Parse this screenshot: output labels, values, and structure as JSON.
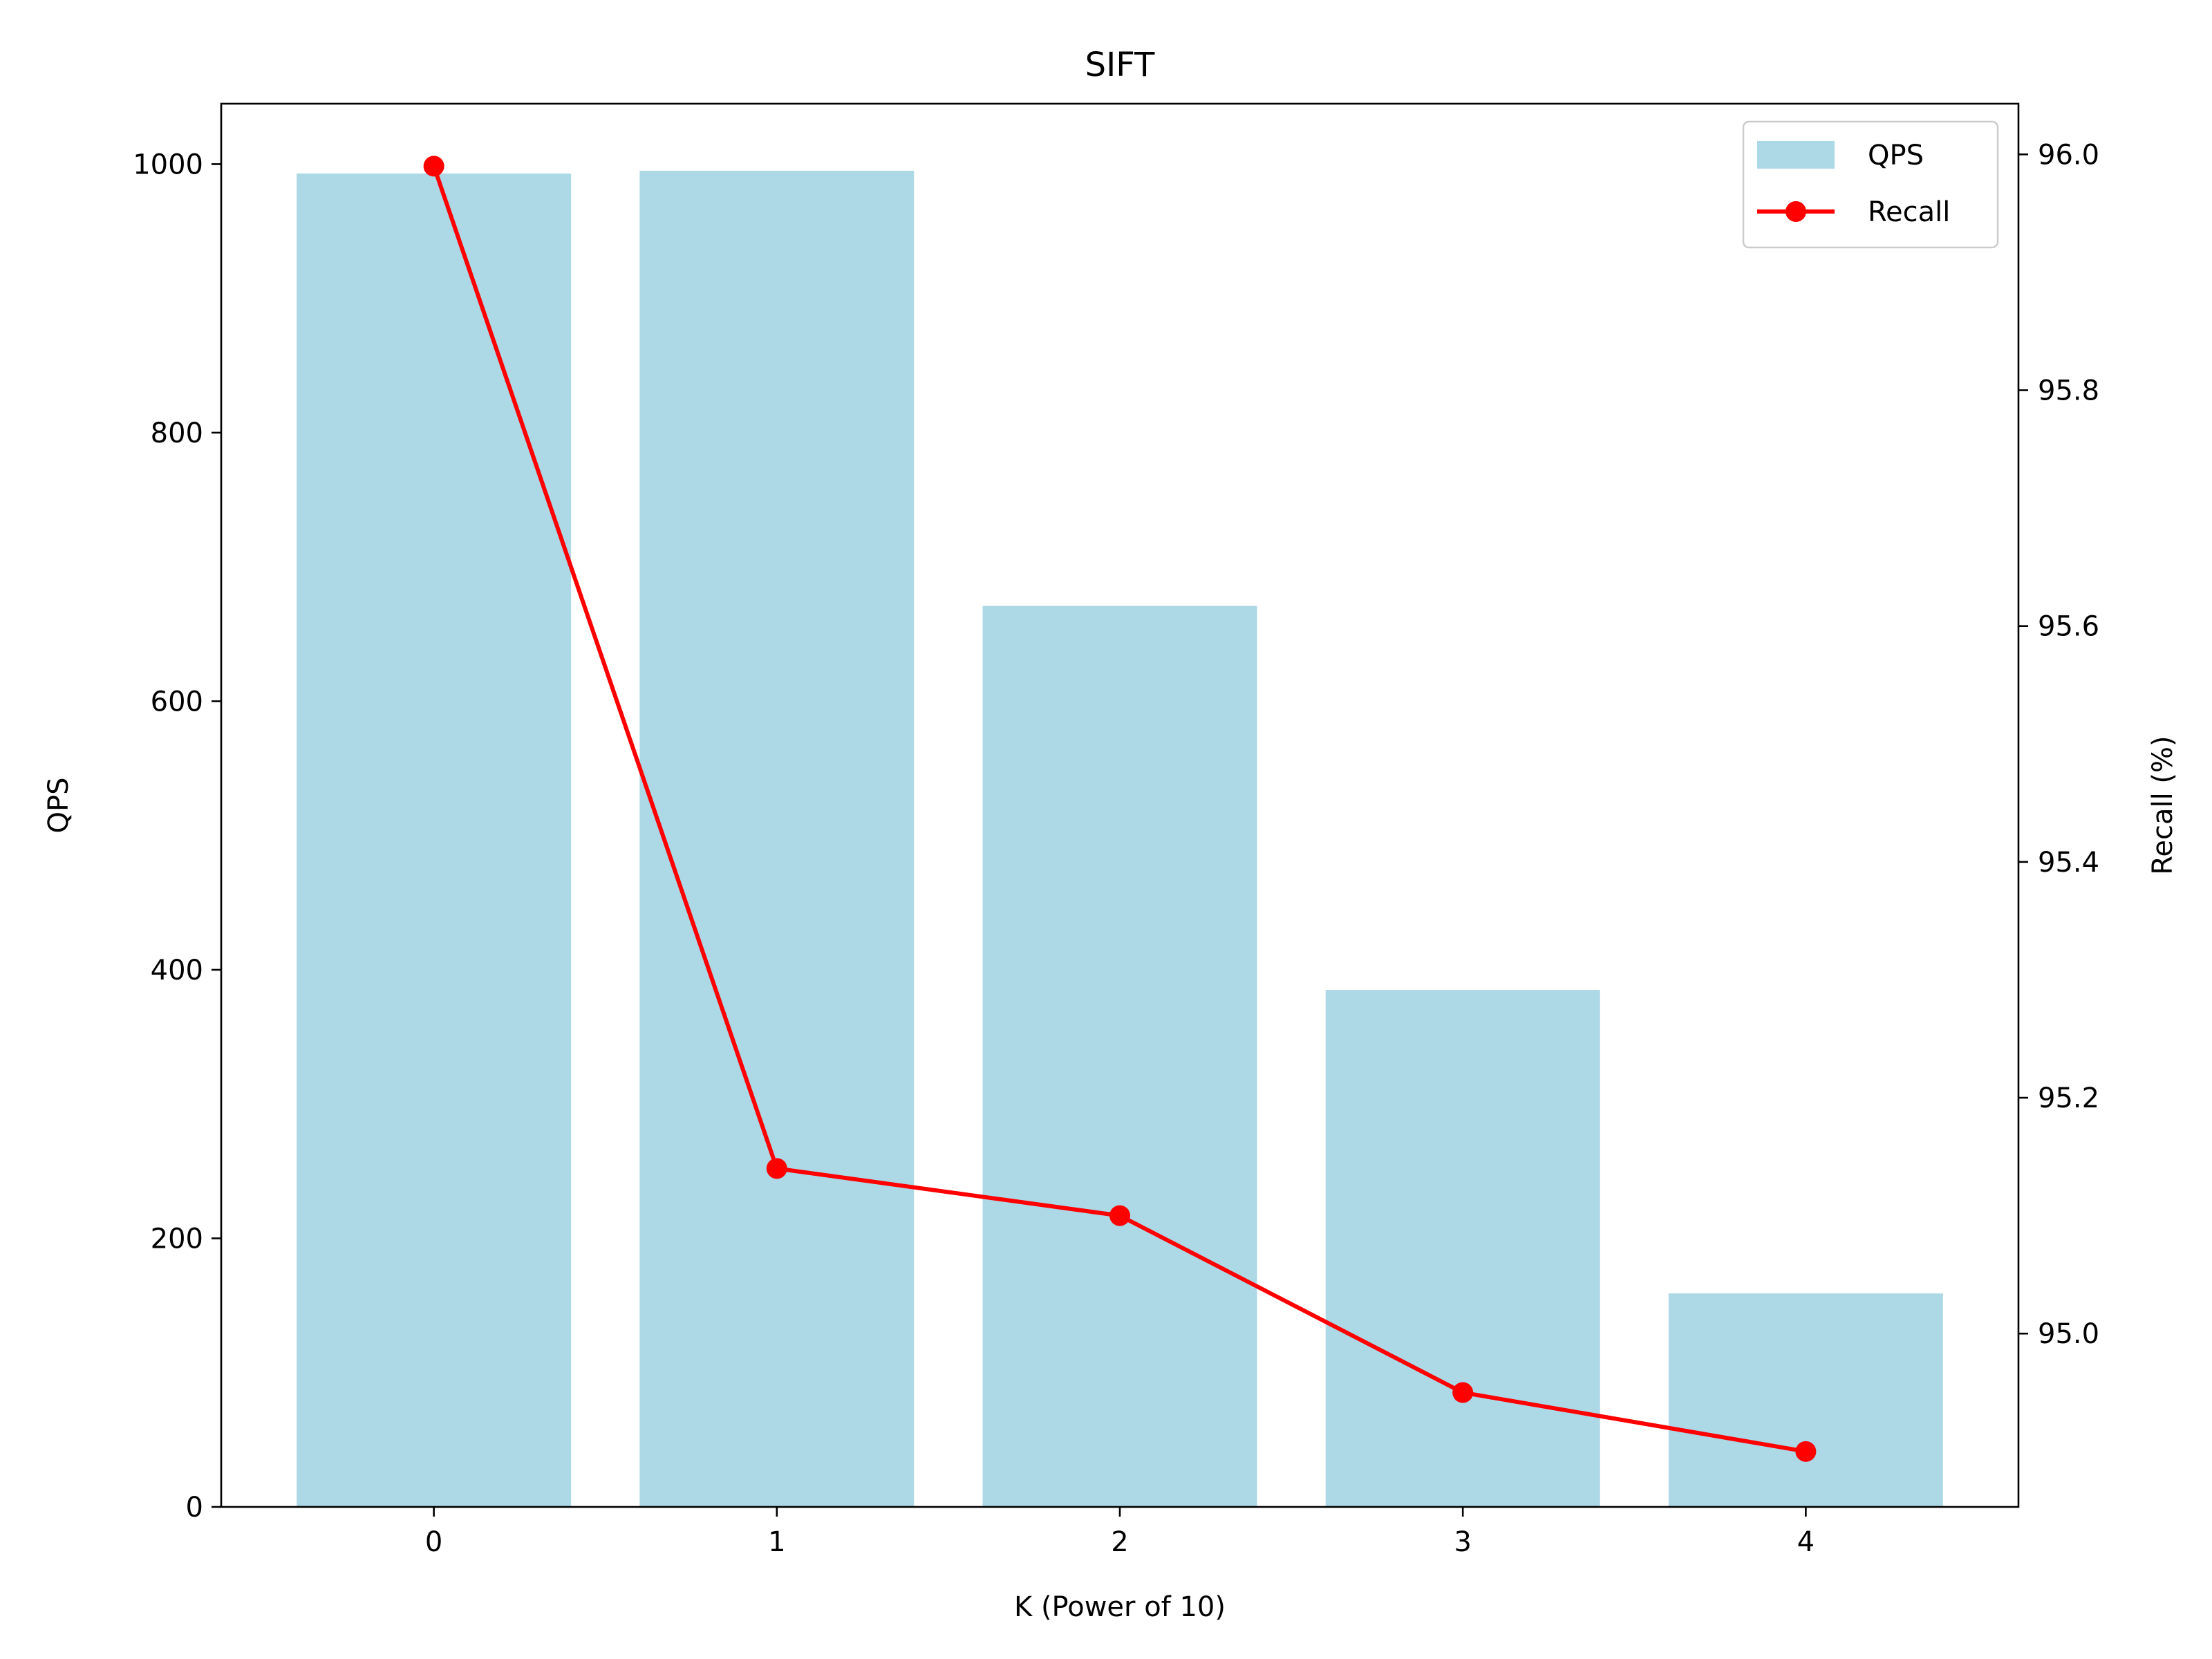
{
  "chart_data": {
    "type": "bar",
    "title": "SIFT",
    "xlabel": "K (Power of 10)",
    "ylabel": "QPS",
    "y2label": "Recall (%)",
    "categories": [
      "0",
      "1",
      "2",
      "3",
      "4"
    ],
    "x": [
      0,
      1,
      2,
      3,
      4
    ],
    "xlim": [
      -0.62,
      4.62
    ],
    "ylim": [
      0,
      1045
    ],
    "y2lim": [
      94.853,
      96.043
    ],
    "yticks": [
      0,
      200,
      400,
      600,
      800,
      1000
    ],
    "y2ticks": [
      95.0,
      95.2,
      95.4,
      95.6,
      95.8,
      96.0
    ],
    "y2tick_labels": [
      "95.0",
      "95.2",
      "95.4",
      "95.6",
      "95.8",
      "96.0"
    ],
    "grid": false,
    "legend_position": "top-right",
    "series": [
      {
        "name": "QPS",
        "type": "bar",
        "axis": "left",
        "color": "#add8e6",
        "values": [
          993,
          995,
          671,
          385,
          159
        ]
      },
      {
        "name": "Recall",
        "type": "line",
        "axis": "right",
        "color": "#ff0000",
        "marker": "circle",
        "values": [
          95.99,
          95.14,
          95.1,
          94.95,
          94.9
        ]
      }
    ]
  }
}
